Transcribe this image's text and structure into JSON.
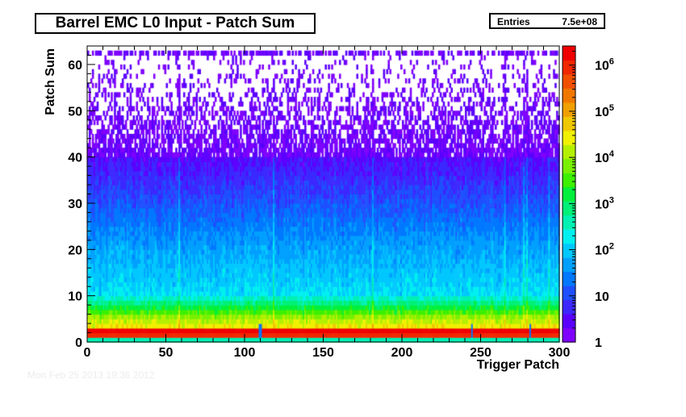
{
  "chart_data": {
    "type": "heatmap",
    "title": "Barrel EMC L0 Input - Patch Sum",
    "xlabel": "Trigger Patch",
    "ylabel": "Patch Sum",
    "xlim": [
      0,
      300
    ],
    "ylim": [
      0,
      64
    ],
    "x_ticks": [
      0,
      50,
      100,
      150,
      200,
      250,
      300
    ],
    "y_ticks": [
      0,
      10,
      20,
      30,
      40,
      50,
      60
    ],
    "z_scale": "log",
    "z_range": [
      1,
      2600000
    ],
    "z_tick_labels": [
      "1",
      "10",
      "10^2",
      "10^3",
      "10^4",
      "10^5",
      "10^6"
    ],
    "z_tick_values": [
      1,
      10,
      100,
      1000,
      10000,
      100000,
      1000000
    ],
    "stats": {
      "label": "Entries",
      "value": "7.5e+08"
    },
    "bins": {
      "x": 300,
      "y": 64
    },
    "profile_description_values": {
      "row_0": 300,
      "row_1": 1000000,
      "row_2": 2000000,
      "row_3_to_5": 30000,
      "row_10": 150,
      "row_20": 50,
      "row_30": 12,
      "row_40": 3,
      "row_62": 1
    },
    "palette": [
      "#7f00ff",
      "#5a00ff",
      "#3c28ff",
      "#1e50ff",
      "#0078ff",
      "#00a0ff",
      "#00c8ff",
      "#00f0f0",
      "#00f0b4",
      "#00f078",
      "#00f03c",
      "#3cf000",
      "#78f000",
      "#b4f000",
      "#f0f000",
      "#f0c800",
      "#f0a000",
      "#f07800",
      "#f05000",
      "#f02800",
      "#f00000"
    ],
    "footer": "Mon Feb 25 2013 19:36 2012"
  }
}
